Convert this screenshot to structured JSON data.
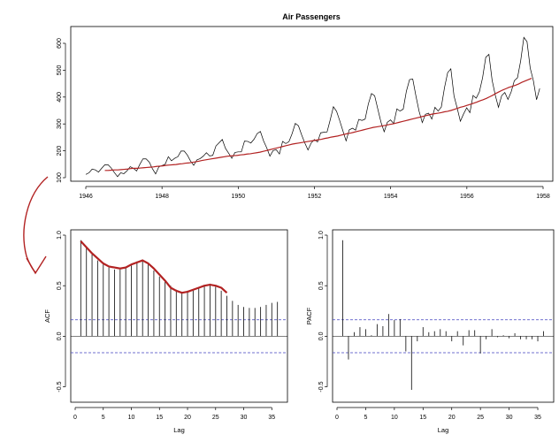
{
  "colors": {
    "series": "#000000",
    "trend": "#b22222",
    "ci": "#4040c0",
    "arrow": "#b22222"
  },
  "chart_data": [
    {
      "type": "line",
      "title": "Air Passengers",
      "xlabel": "",
      "ylabel": "",
      "xlim": [
        1946,
        1958
      ],
      "ylim": [
        100,
        650
      ],
      "xticks": [
        1946,
        1948,
        1950,
        1952,
        1954,
        1956,
        1958
      ],
      "yticks": [
        100,
        200,
        300,
        400,
        500,
        600
      ],
      "start": 1946.0,
      "step": 0.0833,
      "series": [
        {
          "name": "passengers",
          "values": [
            112,
            118,
            132,
            129,
            121,
            135,
            148,
            148,
            136,
            119,
            104,
            118,
            115,
            126,
            141,
            135,
            125,
            149,
            170,
            170,
            158,
            133,
            114,
            140,
            145,
            150,
            178,
            163,
            172,
            178,
            199,
            199,
            184,
            162,
            146,
            166,
            171,
            180,
            193,
            181,
            183,
            218,
            230,
            242,
            209,
            191,
            172,
            194,
            196,
            196,
            236,
            235,
            229,
            243,
            264,
            272,
            237,
            211,
            180,
            201,
            204,
            188,
            235,
            227,
            234,
            264,
            302,
            293,
            259,
            229,
            203,
            229,
            242,
            233,
            267,
            269,
            270,
            315,
            364,
            347,
            312,
            274,
            237,
            278,
            284,
            277,
            317,
            313,
            318,
            374,
            413,
            405,
            355,
            306,
            271,
            306,
            315,
            301,
            356,
            348,
            355,
            422,
            465,
            467,
            404,
            347,
            305,
            336,
            340,
            318,
            362,
            348,
            363,
            435,
            491,
            505,
            404,
            359,
            310,
            337,
            360,
            342,
            406,
            396,
            420,
            472,
            548,
            559,
            463,
            407,
            362,
            405,
            417,
            391,
            419,
            461,
            472,
            535,
            622,
            606,
            508,
            461,
            390,
            432
          ]
        },
        {
          "name": "trend",
          "start": 1946.5,
          "values": [
            127,
            127,
            128,
            129,
            129,
            130,
            131,
            132,
            134,
            135,
            135,
            136,
            137,
            138,
            139,
            140,
            142,
            143,
            144,
            146,
            147,
            148,
            149,
            151,
            152,
            154,
            155,
            157,
            159,
            161,
            164,
            166,
            168,
            170,
            172,
            174,
            176,
            178,
            180,
            181,
            182,
            183,
            185,
            186,
            188,
            189,
            191,
            193,
            195,
            198,
            201,
            204,
            207,
            210,
            213,
            216,
            219,
            222,
            225,
            227,
            229,
            231,
            233,
            235,
            237,
            239,
            241,
            243,
            246,
            248,
            251,
            253,
            255,
            258,
            261,
            264,
            266,
            269,
            272,
            275,
            278,
            281,
            284,
            287,
            289,
            291,
            293,
            295,
            298,
            300,
            303,
            306,
            309,
            312,
            315,
            318,
            321,
            324,
            327,
            330,
            333,
            336,
            338,
            340,
            342,
            345,
            347,
            350,
            354,
            358,
            362,
            365,
            369,
            373,
            377,
            381,
            386,
            390,
            395,
            401,
            407,
            414,
            420,
            426,
            431,
            436,
            440,
            444,
            449,
            455,
            460,
            465,
            470
          ]
        }
      ]
    },
    {
      "type": "bar",
      "title": "",
      "xlabel": "Lag",
      "ylabel": "ACF",
      "xlim": [
        0,
        37
      ],
      "ylim": [
        -0.6,
        1.0
      ],
      "xticks": [
        0,
        5,
        10,
        15,
        20,
        25,
        30,
        35
      ],
      "yticks": [
        -0.5,
        0.0,
        0.5,
        1.0
      ],
      "ci": 0.163,
      "lags": [
        1,
        2,
        3,
        4,
        5,
        6,
        7,
        8,
        9,
        10,
        11,
        12,
        13,
        14,
        15,
        16,
        17,
        18,
        19,
        20,
        21,
        22,
        23,
        24,
        25,
        26,
        27,
        28,
        29,
        30,
        31,
        32,
        33,
        34,
        35,
        36
      ],
      "values": [
        0.95,
        0.88,
        0.81,
        0.75,
        0.71,
        0.68,
        0.66,
        0.66,
        0.68,
        0.7,
        0.74,
        0.76,
        0.71,
        0.65,
        0.59,
        0.54,
        0.5,
        0.46,
        0.44,
        0.45,
        0.46,
        0.48,
        0.5,
        0.52,
        0.49,
        0.45,
        0.4,
        0.35,
        0.31,
        0.29,
        0.28,
        0.28,
        0.29,
        0.31,
        0.33,
        0.34
      ],
      "trend": [
        [
          1.0,
          0.94
        ],
        [
          2.0,
          0.88
        ],
        [
          3,
          0.82
        ],
        [
          4,
          0.77
        ],
        [
          5,
          0.72
        ],
        [
          6,
          0.69
        ],
        [
          7,
          0.68
        ],
        [
          8,
          0.67
        ],
        [
          9,
          0.68
        ],
        [
          10,
          0.71
        ],
        [
          11,
          0.73
        ],
        [
          12,
          0.75
        ],
        [
          13,
          0.72
        ],
        [
          14,
          0.67
        ],
        [
          15,
          0.61
        ],
        [
          16,
          0.55
        ],
        [
          17,
          0.48
        ],
        [
          18,
          0.45
        ],
        [
          19,
          0.43
        ],
        [
          20,
          0.44
        ],
        [
          21,
          0.46
        ],
        [
          22,
          0.48
        ],
        [
          23,
          0.5
        ],
        [
          24,
          0.51
        ],
        [
          25,
          0.5
        ],
        [
          26,
          0.48
        ],
        [
          27,
          0.43
        ]
      ]
    },
    {
      "type": "bar",
      "title": "",
      "xlabel": "Lag",
      "ylabel": "PACF",
      "xlim": [
        0,
        37
      ],
      "ylim": [
        -0.6,
        1.0
      ],
      "xticks": [
        0,
        5,
        10,
        15,
        20,
        25,
        30,
        35
      ],
      "yticks": [
        -0.5,
        0.0,
        0.5,
        1.0
      ],
      "ci": 0.163,
      "lags": [
        1,
        2,
        3,
        4,
        5,
        6,
        7,
        8,
        9,
        10,
        11,
        12,
        13,
        14,
        15,
        16,
        17,
        18,
        19,
        20,
        21,
        22,
        23,
        24,
        25,
        26,
        27,
        28,
        29,
        30,
        31,
        32,
        33,
        34,
        35,
        36
      ],
      "values": [
        0.95,
        -0.23,
        0.04,
        0.09,
        0.07,
        0.01,
        0.12,
        0.1,
        0.22,
        0.16,
        0.17,
        -0.15,
        -0.53,
        -0.05,
        0.09,
        0.04,
        0.05,
        0.07,
        0.05,
        -0.05,
        0.05,
        -0.09,
        0.06,
        0.06,
        -0.17,
        -0.03,
        0.07,
        -0.01,
        0.01,
        -0.02,
        0.03,
        -0.03,
        -0.03,
        -0.03,
        -0.05,
        0.05
      ]
    }
  ]
}
